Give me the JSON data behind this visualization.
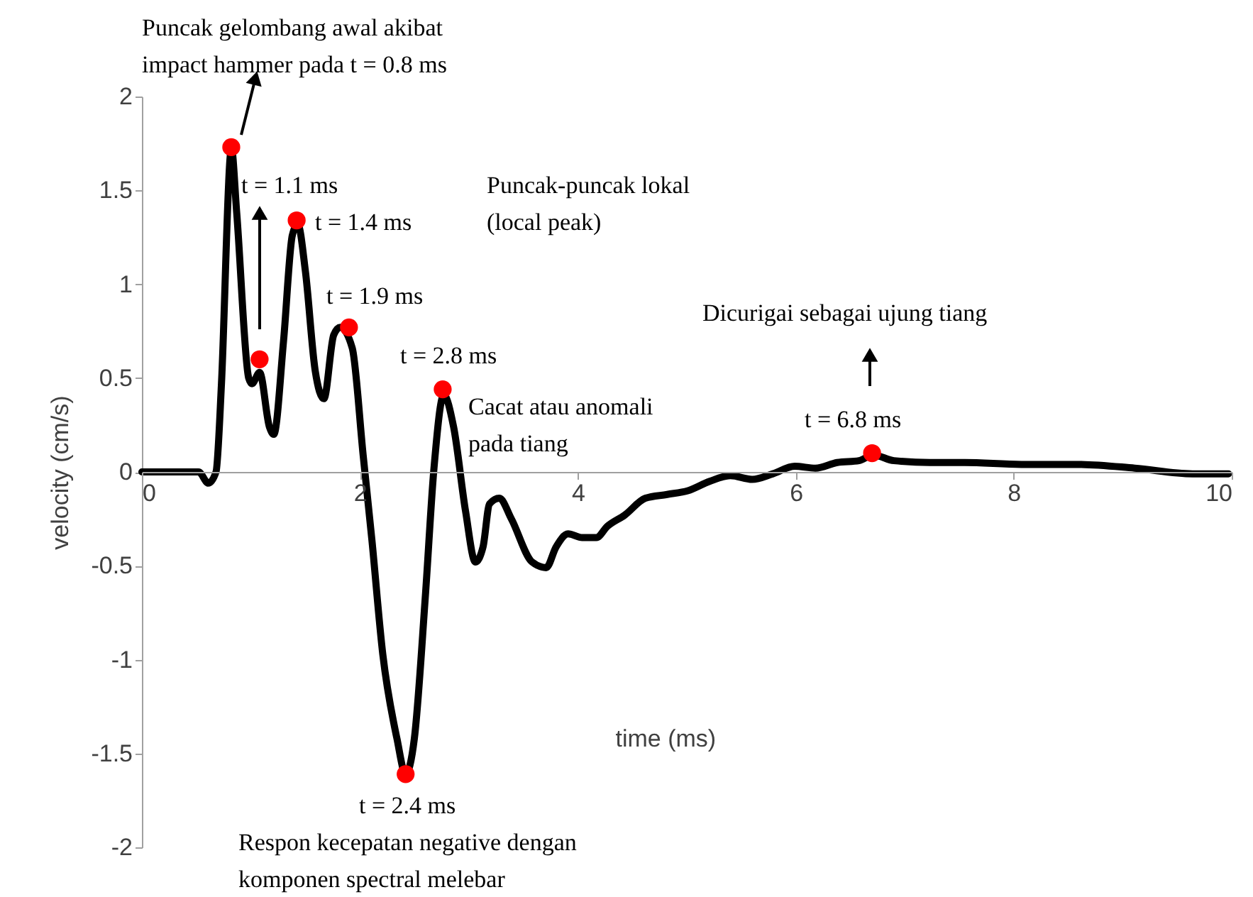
{
  "chart_data": {
    "type": "line",
    "xlabel": "time (ms)",
    "ylabel": "velocity (cm/s)",
    "xlim": [
      0,
      10
    ],
    "xticks": [
      0,
      2,
      4,
      6,
      8,
      10
    ],
    "ylim": [
      -2,
      2
    ],
    "yticks": [
      -2,
      -1.5,
      -1,
      -0.5,
      0,
      0.5,
      1,
      1.5,
      2
    ],
    "grid": false,
    "line_style": "solid",
    "series": [
      {
        "color": "#000000",
        "x": [
          0,
          0.52,
          0.61,
          0.68,
          0.73,
          0.81,
          0.82,
          0.87,
          0.98,
          1.01,
          1.08,
          1.17,
          1.21,
          1.3,
          1.38,
          1.43,
          1.5,
          1.59,
          1.67,
          1.76,
          1.82,
          1.93,
          2.03,
          2.11,
          2.21,
          2.34,
          2.42,
          2.5,
          2.6,
          2.68,
          2.77,
          2.86,
          2.97,
          3.06,
          3.13,
          3.19,
          3.28,
          3.39,
          3.58,
          3.71,
          3.8,
          3.91,
          4.04,
          4.17,
          4.27,
          4.43,
          4.62,
          4.82,
          5.01,
          5.21,
          5.4,
          5.6,
          5.79,
          5.99,
          6.18,
          6.38,
          6.58,
          6.71,
          6.9,
          7.23,
          7.55,
          8.07,
          8.59,
          9.11,
          9.64,
          9.97
        ],
        "values": [
          0,
          0,
          -0.06,
          0,
          0.47,
          1.68,
          1.73,
          1.38,
          0.5,
          0.47,
          0.53,
          0.24,
          0.2,
          0.7,
          1.26,
          1.32,
          1.07,
          0.54,
          0.39,
          0.73,
          0.77,
          0.66,
          0.09,
          -0.36,
          -0.97,
          -1.42,
          -1.61,
          -1.42,
          -0.67,
          0.02,
          0.41,
          0.24,
          -0.21,
          -0.48,
          -0.4,
          -0.17,
          -0.14,
          -0.25,
          -0.48,
          -0.51,
          -0.4,
          -0.33,
          -0.35,
          -0.35,
          -0.29,
          -0.23,
          -0.14,
          -0.12,
          -0.1,
          -0.05,
          -0.02,
          -0.04,
          -0.01,
          0.03,
          0.02,
          0.05,
          0.06,
          0.09,
          0.06,
          0.05,
          0.05,
          0.04,
          0.04,
          0.02,
          -0.01,
          -0.01
        ]
      },
      {
        "type": "scatter",
        "color": "#ff0000",
        "marker": "circle",
        "x": [
          0.82,
          1.08,
          1.42,
          1.9,
          2.42,
          2.76,
          6.7
        ],
        "values": [
          1.73,
          0.6,
          1.34,
          0.77,
          -1.61,
          0.44,
          0.1
        ]
      }
    ],
    "annotations": [
      "Puncak gelombang awal akibat\nimpact hammer pada t = 0.8 ms",
      "t = 1.1 ms",
      "t = 1.4 ms",
      "Puncak-puncak lokal\n(local peak)",
      "t = 1.9 ms",
      "t = 2.8 ms",
      "Cacat atau anomali\npada tiang",
      "Dicurigai sebagai ujung tiang",
      "t = 6.8 ms",
      "t = 2.4 ms",
      "Respon kecepatan negative dengan\nkomponen spectral melebar"
    ]
  }
}
